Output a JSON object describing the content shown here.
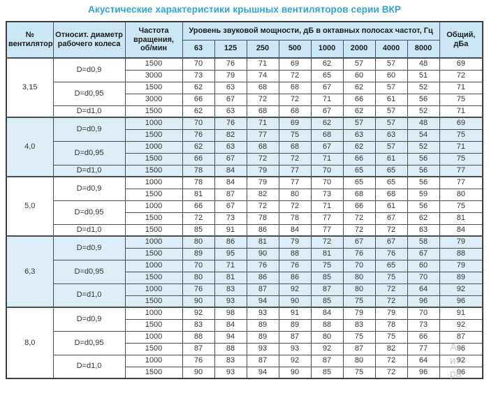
{
  "title": "Акустические характеристики крышных вентиляторов серии ВКР",
  "colors": {
    "title_accent": "#2ba4d9",
    "header_bg": "#c9e7f5",
    "shaded_section_bg": "#dcedf8",
    "border": "#4d4d4d"
  },
  "table": {
    "headers": {
      "fan_number": "№ вентилятора",
      "diameter": "Относит. диаметр рабочего колеса",
      "rpm": "Частота вращения, об/мин",
      "spl_group": "Уровень звуковой мощности, дБ в октавных полосах частот, Гц",
      "frequencies": [
        "63",
        "125",
        "250",
        "500",
        "1000",
        "2000",
        "4000",
        "8000"
      ],
      "total": "Общий, дБа"
    },
    "sections": [
      {
        "fan": "3,15",
        "groups": [
          {
            "diameter": "D=d0,9",
            "rows": [
              {
                "rpm": "1500",
                "values": [
                  70,
                  76,
                  71,
                  69,
                  62,
                  57,
                  57,
                  48
                ],
                "total": 69
              },
              {
                "rpm": "3000",
                "values": [
                  73,
                  79,
                  74,
                  72,
                  65,
                  60,
                  60,
                  51
                ],
                "total": 72
              }
            ]
          },
          {
            "diameter": "D=d0,95",
            "rows": [
              {
                "rpm": "1500",
                "values": [
                  62,
                  63,
                  68,
                  68,
                  67,
                  62,
                  57,
                  52
                ],
                "total": 71
              },
              {
                "rpm": "3000",
                "values": [
                  66,
                  67,
                  72,
                  72,
                  71,
                  66,
                  61,
                  56
                ],
                "total": 75
              }
            ]
          },
          {
            "diameter": "D=d1,0",
            "rows": [
              {
                "rpm": "1500",
                "values": [
                  62,
                  63,
                  68,
                  68,
                  67,
                  62,
                  57,
                  52
                ],
                "total": 71
              }
            ]
          }
        ]
      },
      {
        "fan": "4,0",
        "groups": [
          {
            "diameter": "D=d0,9",
            "rows": [
              {
                "rpm": "1000",
                "values": [
                  70,
                  76,
                  71,
                  69,
                  62,
                  57,
                  57,
                  48
                ],
                "total": 69
              },
              {
                "rpm": "1500",
                "values": [
                  76,
                  82,
                  77,
                  75,
                  68,
                  63,
                  63,
                  54
                ],
                "total": 75
              }
            ]
          },
          {
            "diameter": "D=d0,95",
            "rows": [
              {
                "rpm": "1000",
                "values": [
                  62,
                  63,
                  68,
                  68,
                  67,
                  62,
                  57,
                  52
                ],
                "total": 71
              },
              {
                "rpm": "1500",
                "values": [
                  66,
                  67,
                  72,
                  72,
                  71,
                  66,
                  61,
                  56
                ],
                "total": 75
              }
            ]
          },
          {
            "diameter": "D=d1,0",
            "rows": [
              {
                "rpm": "1500",
                "values": [
                  78,
                  84,
                  79,
                  77,
                  70,
                  65,
                  65,
                  56
                ],
                "total": 77
              }
            ]
          }
        ]
      },
      {
        "fan": "5,0",
        "groups": [
          {
            "diameter": "D=d0,9",
            "rows": [
              {
                "rpm": "1000",
                "values": [
                  78,
                  84,
                  79,
                  77,
                  70,
                  65,
                  65,
                  56
                ],
                "total": 77
              },
              {
                "rpm": "1500",
                "values": [
                  81,
                  87,
                  82,
                  80,
                  73,
                  68,
                  68,
                  59
                ],
                "total": 80
              }
            ]
          },
          {
            "diameter": "D=d0,95",
            "rows": [
              {
                "rpm": "1000",
                "values": [
                  66,
                  67,
                  72,
                  72,
                  71,
                  66,
                  61,
                  56
                ],
                "total": 75
              },
              {
                "rpm": "1500",
                "values": [
                  72,
                  73,
                  78,
                  78,
                  77,
                  72,
                  67,
                  62
                ],
                "total": 81
              }
            ]
          },
          {
            "diameter": "D=d1,0",
            "rows": [
              {
                "rpm": "1500",
                "values": [
                  85,
                  91,
                  86,
                  84,
                  77,
                  72,
                  72,
                  63
                ],
                "total": 84
              }
            ]
          }
        ]
      },
      {
        "fan": "6,3",
        "groups": [
          {
            "diameter": "D=d0,9",
            "rows": [
              {
                "rpm": "1000",
                "values": [
                  80,
                  86,
                  81,
                  79,
                  72,
                  67,
                  67,
                  58
                ],
                "total": 79
              },
              {
                "rpm": "1500",
                "values": [
                  89,
                  95,
                  90,
                  88,
                  81,
                  76,
                  76,
                  67
                ],
                "total": 88
              }
            ]
          },
          {
            "diameter": "D=d0,95",
            "rows": [
              {
                "rpm": "1000",
                "values": [
                  70,
                  71,
                  76,
                  76,
                  75,
                  70,
                  65,
                  60
                ],
                "total": 79
              },
              {
                "rpm": "1500",
                "values": [
                  80,
                  81,
                  86,
                  86,
                  85,
                  80,
                  75,
                  70
                ],
                "total": 89
              }
            ]
          },
          {
            "diameter": "D=d1,0",
            "rows": [
              {
                "rpm": "1000",
                "values": [
                  76,
                  83,
                  87,
                  92,
                  87,
                  80,
                  72,
                  64
                ],
                "total": 92
              },
              {
                "rpm": "1500",
                "values": [
                  90,
                  93,
                  94,
                  90,
                  85,
                  75,
                  72,
                  96
                ],
                "total": 96
              }
            ]
          }
        ]
      },
      {
        "fan": "8,0",
        "groups": [
          {
            "diameter": "D=d0,9",
            "rows": [
              {
                "rpm": "1000",
                "values": [
                  92,
                  98,
                  93,
                  91,
                  84,
                  79,
                  79,
                  70
                ],
                "total": 91
              },
              {
                "rpm": "1500",
                "values": [
                  83,
                  84,
                  89,
                  89,
                  88,
                  83,
                  78,
                  73
                ],
                "total": 92
              }
            ]
          },
          {
            "diameter": "D=d0,95",
            "rows": [
              {
                "rpm": "1000",
                "values": [
                  88,
                  94,
                  89,
                  87,
                  80,
                  75,
                  75,
                  66
                ],
                "total": 87
              },
              {
                "rpm": "1500",
                "values": [
                  87,
                  88,
                  93,
                  93,
                  92,
                  87,
                  82,
                  77
                ],
                "total": 96
              }
            ]
          },
          {
            "diameter": "D=d1,0",
            "rows": [
              {
                "rpm": "1000",
                "values": [
                  76,
                  83,
                  87,
                  92,
                  87,
                  80,
                  72,
                  64
                ],
                "total": 92
              },
              {
                "rpm": "1500",
                "values": [
                  90,
                  93,
                  94,
                  90,
                  85,
                  75,
                  72,
                  96
                ],
                "total": 96
              }
            ]
          }
        ]
      }
    ]
  },
  "watermark": {
    "fragments": [
      "Ак",
      "ит",
      "ра"
    ]
  }
}
